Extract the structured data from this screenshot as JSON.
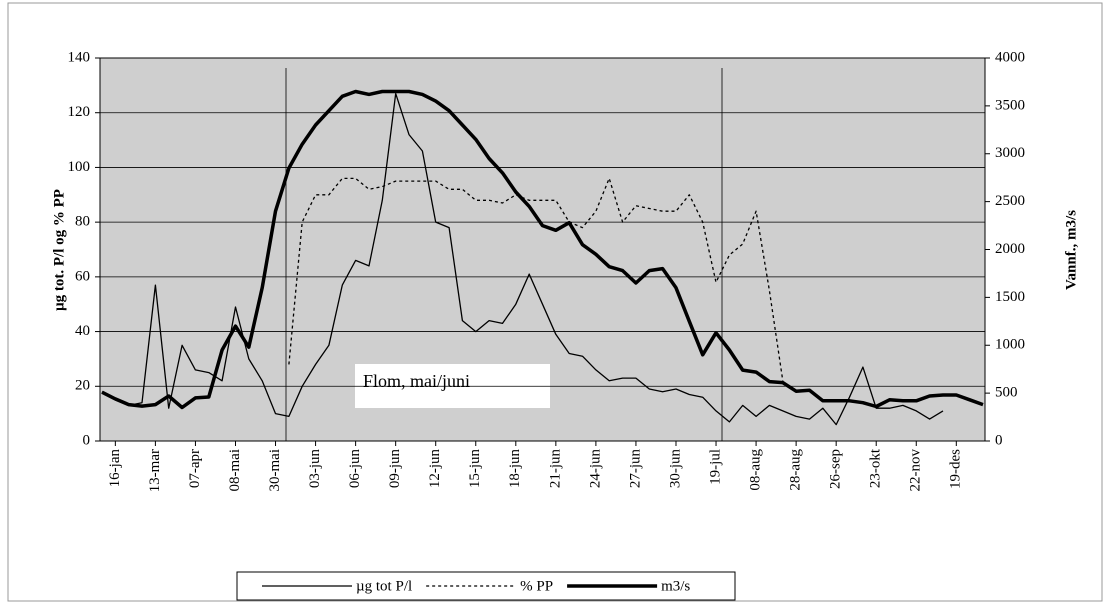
{
  "chart_data": {
    "type": "line",
    "y_label": "µg tot. P/l og % PP",
    "y2_label": "Vannf., m3/s",
    "annotation": "Flom, mai/juni",
    "categories": [
      null,
      "16-jan",
      null,
      null,
      "13-mar",
      null,
      null,
      "07-apr",
      null,
      null,
      "08-mai",
      null,
      null,
      "30-mai",
      null,
      null,
      "03-jun",
      null,
      null,
      "06-jun",
      null,
      null,
      "09-jun",
      null,
      null,
      "12-jun",
      null,
      null,
      "15-jun",
      null,
      null,
      "18-jun",
      null,
      null,
      "21-jun",
      null,
      null,
      "24-jun",
      null,
      null,
      "27-jun",
      null,
      null,
      "30-jun",
      null,
      null,
      "19-jul",
      null,
      null,
      "08-aug",
      null,
      null,
      "28-aug",
      null,
      null,
      "26-sep",
      null,
      null,
      "23-okt",
      null,
      null,
      "22-nov",
      null,
      null,
      "19-des",
      null,
      null
    ],
    "series": [
      {
        "name": "µg tot P/l",
        "color": "#000000",
        "values": [
          18,
          15,
          13,
          14,
          57,
          12,
          35,
          26,
          25,
          22,
          49,
          30,
          22,
          10,
          9,
          20,
          28,
          35,
          57,
          66,
          64,
          88,
          127,
          112,
          106,
          80,
          78,
          44,
          40,
          44,
          43,
          50,
          61,
          50,
          39,
          32,
          31,
          26,
          22,
          23,
          23,
          19,
          18,
          19,
          17,
          16,
          11,
          7,
          13,
          9,
          13,
          11,
          9,
          8,
          12,
          6,
          16,
          27,
          12,
          12,
          13,
          11,
          8,
          11,
          null,
          null,
          null
        ]
      },
      {
        "name": "% PP",
        "color": "#000000",
        "values": [
          null,
          null,
          null,
          null,
          null,
          null,
          null,
          null,
          null,
          null,
          null,
          null,
          null,
          null,
          28,
          80,
          90,
          90,
          96,
          96,
          92,
          93,
          95,
          95,
          95,
          95,
          92,
          92,
          88,
          88,
          87,
          90,
          88,
          88,
          88,
          80,
          78,
          84,
          96,
          80,
          86,
          85,
          84,
          84,
          90,
          80,
          58,
          68,
          72,
          84,
          55,
          22,
          null,
          null,
          null,
          null,
          null,
          null,
          null,
          null,
          null,
          null,
          null,
          null,
          null,
          null,
          null
        ]
      },
      {
        "name": "m3/s",
        "color": "#000000",
        "axis": "y2",
        "values": [
          510,
          440,
          380,
          365,
          380,
          470,
          350,
          450,
          460,
          950,
          1200,
          980,
          1600,
          2400,
          2850,
          3100,
          3300,
          3450,
          3600,
          3650,
          3620,
          3650,
          3650,
          3650,
          3620,
          3550,
          3450,
          3300,
          3150,
          2950,
          2800,
          2600,
          2450,
          2250,
          2200,
          2280,
          2050,
          1950,
          1820,
          1780,
          1650,
          1780,
          1800,
          1600,
          1250,
          900,
          1130,
          950,
          740,
          720,
          620,
          610,
          520,
          530,
          420,
          420,
          420,
          400,
          360,
          430,
          420,
          420,
          470,
          480,
          480,
          430,
          380
        ]
      }
    ],
    "ylim": [
      0,
      140
    ],
    "yticks": [
      0,
      20,
      40,
      60,
      80,
      100,
      120,
      140
    ],
    "y2lim": [
      0,
      4000
    ],
    "y2ticks": [
      0,
      500,
      1000,
      1500,
      2000,
      2500,
      3000,
      3500,
      4000
    ],
    "grid": true,
    "legend": "bottom"
  }
}
